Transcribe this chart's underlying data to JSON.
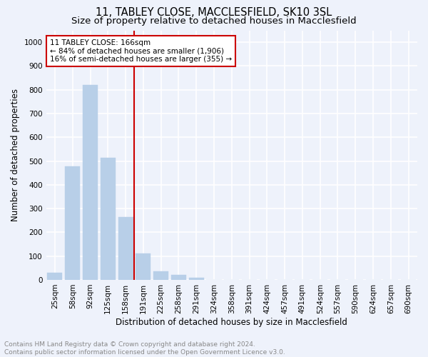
{
  "title1": "11, TABLEY CLOSE, MACCLESFIELD, SK10 3SL",
  "title2": "Size of property relative to detached houses in Macclesfield",
  "xlabel": "Distribution of detached houses by size in Macclesfield",
  "ylabel": "Number of detached properties",
  "categories": [
    "25sqm",
    "58sqm",
    "92sqm",
    "125sqm",
    "158sqm",
    "191sqm",
    "225sqm",
    "258sqm",
    "291sqm",
    "324sqm",
    "358sqm",
    "391sqm",
    "424sqm",
    "457sqm",
    "491sqm",
    "524sqm",
    "557sqm",
    "590sqm",
    "624sqm",
    "657sqm",
    "690sqm"
  ],
  "values": [
    30,
    478,
    820,
    515,
    265,
    110,
    35,
    22,
    10,
    0,
    0,
    0,
    0,
    0,
    0,
    0,
    0,
    0,
    0,
    0,
    0
  ],
  "bar_color": "#b8cfe8",
  "bar_edge_color": "#b8cfe8",
  "vline_x_idx": 4.5,
  "vline_color": "#cc0000",
  "annotation_line1": "11 TABLEY CLOSE: 166sqm",
  "annotation_line2": "← 84% of detached houses are smaller (1,906)",
  "annotation_line3": "16% of semi-detached houses are larger (355) →",
  "annotation_box_color": "white",
  "annotation_box_edge_color": "#cc0000",
  "ylim": [
    0,
    1050
  ],
  "yticks": [
    0,
    100,
    200,
    300,
    400,
    500,
    600,
    700,
    800,
    900,
    1000
  ],
  "footer_line1": "Contains HM Land Registry data © Crown copyright and database right 2024.",
  "footer_line2": "Contains public sector information licensed under the Open Government Licence v3.0.",
  "bg_color": "#eef2fb",
  "plot_bg_color": "#eef2fb",
  "grid_color": "white",
  "title1_fontsize": 10.5,
  "title2_fontsize": 9.5,
  "axis_label_fontsize": 8.5,
  "tick_fontsize": 7.5,
  "annotation_fontsize": 7.5,
  "footer_fontsize": 6.5
}
